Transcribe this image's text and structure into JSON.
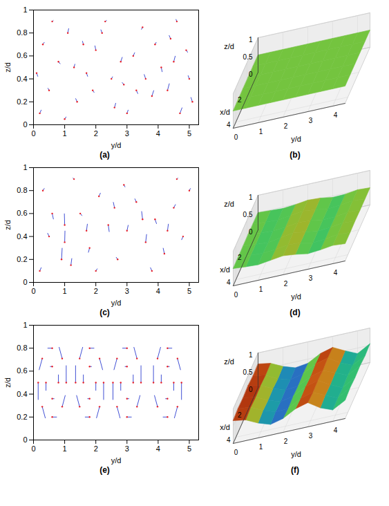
{
  "chart_data": [
    {
      "type": "vector_field",
      "panel_label": "(a)",
      "xlabel": "y/d",
      "ylabel": "z/d",
      "xlim": [
        0,
        5.3
      ],
      "xticks": [
        0,
        1,
        2,
        3,
        4,
        5
      ],
      "ylim": [
        0,
        1
      ],
      "yticks": [
        0,
        0.2,
        0.4,
        0.6,
        0.8,
        1
      ],
      "color": "#2b3ccf",
      "vectors": [
        [
          0.2,
          0.1,
          0.05,
          0.03
        ],
        [
          0.5,
          0.3,
          -0.04,
          0.02
        ],
        [
          0.8,
          0.55,
          0.06,
          -0.02
        ],
        [
          1.1,
          0.8,
          0.03,
          0.04
        ],
        [
          0.3,
          0.7,
          0.05,
          0.02
        ],
        [
          1.4,
          0.2,
          -0.05,
          0.03
        ],
        [
          1.7,
          0.45,
          0.04,
          -0.03
        ],
        [
          2.0,
          0.65,
          -0.03,
          0.04
        ],
        [
          2.3,
          0.9,
          0.05,
          0.01
        ],
        [
          2.6,
          0.15,
          0.04,
          0.04
        ],
        [
          2.9,
          0.35,
          -0.06,
          0.02
        ],
        [
          3.2,
          0.6,
          0.05,
          0.03
        ],
        [
          3.5,
          0.85,
          -0.04,
          -0.02
        ],
        [
          3.8,
          0.25,
          0.06,
          0.05
        ],
        [
          4.1,
          0.5,
          0.03,
          -0.04
        ],
        [
          4.4,
          0.75,
          -0.05,
          0.03
        ],
        [
          4.7,
          0.1,
          0.07,
          0.05
        ],
        [
          5.0,
          0.4,
          -0.04,
          0.03
        ],
        [
          4.9,
          0.65,
          0.05,
          -0.02
        ],
        [
          0.6,
          0.9,
          0.04,
          0.01
        ],
        [
          1.0,
          0.05,
          0.05,
          0.02
        ],
        [
          1.3,
          0.5,
          0.03,
          0.03
        ],
        [
          1.9,
          0.3,
          0.05,
          -0.02
        ],
        [
          2.2,
          0.8,
          -0.04,
          0.03
        ],
        [
          2.8,
          0.55,
          0.05,
          0.04
        ],
        [
          3.0,
          0.1,
          0.04,
          0.03
        ],
        [
          3.6,
          0.4,
          -0.05,
          0.04
        ],
        [
          3.9,
          0.7,
          0.04,
          0.02
        ],
        [
          4.3,
          0.3,
          0.06,
          0.06
        ],
        [
          4.6,
          0.9,
          -0.03,
          0.02
        ],
        [
          0.1,
          0.45,
          0.04,
          -0.03
        ],
        [
          1.6,
          0.7,
          -0.03,
          0.03
        ],
        [
          2.5,
          0.4,
          0.04,
          0.02
        ],
        [
          3.3,
          0.3,
          0.05,
          -0.03
        ],
        [
          4.5,
          0.55,
          0.05,
          0.05
        ],
        [
          5.1,
          0.2,
          -0.05,
          0.04
        ]
      ]
    },
    {
      "type": "surface",
      "panel_label": "(b)",
      "xlabel": "x/d",
      "ylabel": "y/d",
      "zlabel": "z/d",
      "xlim": [
        0,
        4.5
      ],
      "xticks": [
        2,
        4
      ],
      "ylim": [
        0,
        4.5
      ],
      "yticks": [
        0,
        1,
        2,
        3,
        4
      ],
      "zlim": [
        0,
        1
      ],
      "zticks": [
        0,
        0.5,
        1
      ],
      "surface": {
        "x": [
          0,
          0.9,
          1.8,
          2.7,
          3.6,
          4.5
        ],
        "y": [
          0,
          0.5,
          1,
          1.5,
          2,
          2.5,
          3,
          3.5,
          4,
          4.5
        ],
        "z": [
          [
            0.5,
            0.5,
            0.5,
            0.5,
            0.5,
            0.5,
            0.5,
            0.5,
            0.5,
            0.5
          ],
          [
            0.5,
            0.5,
            0.5,
            0.5,
            0.5,
            0.5,
            0.5,
            0.5,
            0.5,
            0.5
          ],
          [
            0.5,
            0.5,
            0.5,
            0.5,
            0.5,
            0.5,
            0.5,
            0.5,
            0.5,
            0.5
          ],
          [
            0.5,
            0.5,
            0.5,
            0.5,
            0.5,
            0.5,
            0.5,
            0.5,
            0.5,
            0.5
          ],
          [
            0.5,
            0.5,
            0.5,
            0.5,
            0.5,
            0.5,
            0.5,
            0.5,
            0.5,
            0.5
          ],
          [
            0.5,
            0.5,
            0.5,
            0.5,
            0.5,
            0.5,
            0.5,
            0.5,
            0.5,
            0.5
          ]
        ]
      }
    },
    {
      "type": "vector_field",
      "panel_label": "(c)",
      "xlabel": "y/d",
      "ylabel": "z/d",
      "xlim": [
        0,
        5.3
      ],
      "xticks": [
        0,
        1,
        2,
        3,
        4,
        5
      ],
      "ylim": [
        0,
        1
      ],
      "yticks": [
        0,
        0.2,
        0.4,
        0.6,
        0.8,
        1
      ],
      "color": "#2b3ccf",
      "vectors": [
        [
          0.9,
          0.2,
          0.02,
          0.1
        ],
        [
          1.0,
          0.35,
          0.01,
          0.1
        ],
        [
          1.0,
          0.5,
          -0.01,
          0.1
        ],
        [
          0.3,
          0.8,
          0.05,
          0.02
        ],
        [
          0.5,
          0.4,
          -0.05,
          0.03
        ],
        [
          1.5,
          0.6,
          0.06,
          -0.02
        ],
        [
          1.8,
          0.3,
          -0.04,
          -0.04
        ],
        [
          2.1,
          0.75,
          0.05,
          0.03
        ],
        [
          2.4,
          0.5,
          0.03,
          -0.06
        ],
        [
          2.7,
          0.2,
          -0.05,
          0.02
        ],
        [
          3.0,
          0.45,
          0.04,
          0.05
        ],
        [
          3.3,
          0.7,
          -0.05,
          0.03
        ],
        [
          3.6,
          0.35,
          0.03,
          0.07
        ],
        [
          3.9,
          0.55,
          0.05,
          -0.04
        ],
        [
          4.2,
          0.25,
          -0.04,
          0.05
        ],
        [
          4.5,
          0.65,
          0.06,
          0.03
        ],
        [
          4.8,
          0.4,
          -0.05,
          -0.03
        ],
        [
          5.0,
          0.8,
          0.04,
          0.02
        ],
        [
          0.2,
          0.1,
          0.05,
          0.03
        ],
        [
          1.3,
          0.9,
          -0.04,
          0.01
        ],
        [
          2.0,
          0.1,
          0.05,
          0.02
        ],
        [
          2.9,
          0.85,
          0.04,
          -0.02
        ],
        [
          3.8,
          0.1,
          -0.05,
          0.03
        ],
        [
          4.6,
          0.9,
          0.04,
          0.01
        ],
        [
          1.2,
          0.15,
          0.03,
          0.06
        ],
        [
          3.5,
          0.55,
          -0.03,
          0.07
        ],
        [
          4.3,
          0.45,
          0.03,
          0.06
        ],
        [
          0.6,
          0.6,
          0.04,
          -0.05
        ],
        [
          2.6,
          0.65,
          -0.04,
          0.05
        ],
        [
          1.7,
          0.45,
          0.03,
          0.06
        ]
      ]
    },
    {
      "type": "surface",
      "panel_label": "(d)",
      "xlabel": "x/d",
      "ylabel": "y/d",
      "zlabel": "z/d",
      "xlim": [
        0,
        4.5
      ],
      "xticks": [
        2,
        4
      ],
      "ylim": [
        0,
        4.5
      ],
      "yticks": [
        0,
        1,
        2,
        3,
        4
      ],
      "zlim": [
        0,
        1
      ],
      "zticks": [
        0,
        0.5,
        1
      ],
      "surface": {
        "x": [
          0,
          0.9,
          1.8,
          2.7,
          3.6,
          4.5
        ],
        "y": [
          0,
          0.5,
          1,
          1.5,
          2,
          2.5,
          3,
          3.5,
          4,
          4.5
        ],
        "z": [
          [
            0.5,
            0.48,
            0.46,
            0.49,
            0.54,
            0.52,
            0.46,
            0.47,
            0.52,
            0.5
          ],
          [
            0.5,
            0.47,
            0.45,
            0.5,
            0.55,
            0.51,
            0.45,
            0.48,
            0.53,
            0.5
          ],
          [
            0.51,
            0.48,
            0.46,
            0.49,
            0.54,
            0.52,
            0.46,
            0.47,
            0.52,
            0.5
          ],
          [
            0.5,
            0.47,
            0.44,
            0.5,
            0.56,
            0.51,
            0.45,
            0.48,
            0.53,
            0.51
          ],
          [
            0.5,
            0.48,
            0.46,
            0.49,
            0.54,
            0.52,
            0.44,
            0.47,
            0.52,
            0.5
          ],
          [
            0.5,
            0.47,
            0.45,
            0.5,
            0.55,
            0.51,
            0.45,
            0.48,
            0.53,
            0.5
          ]
        ]
      }
    },
    {
      "type": "vector_field",
      "panel_label": "(e)",
      "xlabel": "y/d",
      "ylabel": "z/d",
      "xlim": [
        0,
        5.3
      ],
      "xticks": [
        0,
        1,
        2,
        3,
        4,
        5
      ],
      "ylim": [
        0,
        1
      ],
      "yticks": [
        0,
        0.2,
        0.4,
        0.6,
        0.8,
        1
      ],
      "color": "#2b3ccf",
      "vectors": [
        [
          1.05,
          0.5,
          0,
          0.15
        ],
        [
          0.92,
          0.71,
          -0.1,
          0.1
        ],
        [
          0.6,
          0.8,
          -0.15,
          0
        ],
        [
          0.28,
          0.71,
          -0.1,
          -0.1
        ],
        [
          0.15,
          0.5,
          0,
          -0.15
        ],
        [
          0.28,
          0.29,
          0.1,
          -0.1
        ],
        [
          0.6,
          0.2,
          0.15,
          0
        ],
        [
          0.92,
          0.29,
          0.1,
          0.1
        ],
        [
          0.8,
          0.5,
          0,
          0.07
        ],
        [
          0.6,
          0.64,
          -0.07,
          0
        ],
        [
          0.4,
          0.5,
          0,
          -0.07
        ],
        [
          0.6,
          0.36,
          0.07,
          0
        ],
        [
          2.25,
          0.5,
          0,
          -0.15
        ],
        [
          2.12,
          0.71,
          0.1,
          -0.1
        ],
        [
          1.8,
          0.8,
          0.15,
          0
        ],
        [
          1.48,
          0.71,
          0.1,
          0.1
        ],
        [
          1.35,
          0.5,
          0,
          0.15
        ],
        [
          1.48,
          0.29,
          -0.1,
          0.1
        ],
        [
          1.8,
          0.2,
          -0.15,
          0
        ],
        [
          2.12,
          0.29,
          -0.1,
          -0.1
        ],
        [
          2.0,
          0.5,
          0,
          -0.07
        ],
        [
          1.8,
          0.64,
          0.07,
          0
        ],
        [
          1.6,
          0.5,
          0,
          0.07
        ],
        [
          1.8,
          0.36,
          -0.07,
          0
        ],
        [
          3.45,
          0.5,
          0,
          0.15
        ],
        [
          3.32,
          0.71,
          -0.1,
          0.1
        ],
        [
          3.0,
          0.8,
          -0.15,
          0
        ],
        [
          2.68,
          0.71,
          -0.1,
          -0.1
        ],
        [
          2.55,
          0.5,
          0,
          -0.15
        ],
        [
          2.68,
          0.29,
          0.1,
          -0.1
        ],
        [
          3.0,
          0.2,
          0.15,
          0
        ],
        [
          3.32,
          0.29,
          0.1,
          0.1
        ],
        [
          3.2,
          0.5,
          0,
          0.07
        ],
        [
          3.0,
          0.64,
          -0.07,
          0
        ],
        [
          2.8,
          0.5,
          0,
          -0.07
        ],
        [
          3.0,
          0.36,
          0.07,
          0
        ],
        [
          4.75,
          0.5,
          0,
          -0.15
        ],
        [
          4.62,
          0.71,
          0.1,
          -0.1
        ],
        [
          4.3,
          0.8,
          0.15,
          0
        ],
        [
          3.98,
          0.71,
          0.1,
          0.1
        ],
        [
          3.85,
          0.5,
          0,
          0.15
        ],
        [
          3.98,
          0.29,
          -0.1,
          0.1
        ],
        [
          4.3,
          0.2,
          -0.15,
          0
        ],
        [
          4.62,
          0.29,
          -0.1,
          -0.1
        ],
        [
          4.5,
          0.5,
          0,
          -0.07
        ],
        [
          4.3,
          0.64,
          0.07,
          0
        ],
        [
          4.1,
          0.5,
          0,
          0.07
        ],
        [
          4.3,
          0.36,
          -0.07,
          0
        ]
      ]
    },
    {
      "type": "surface",
      "panel_label": "(f)",
      "xlabel": "x/d",
      "ylabel": "y/d",
      "zlabel": "z/d",
      "xlim": [
        0,
        4.5
      ],
      "xticks": [
        2,
        4
      ],
      "ylim": [
        0,
        4.5
      ],
      "yticks": [
        0,
        1,
        2,
        3,
        4
      ],
      "zlim": [
        0,
        1
      ],
      "zticks": [
        0,
        0.5,
        1
      ],
      "surface": {
        "x": [
          0,
          0.9,
          1.8,
          2.7,
          3.6,
          4.5
        ],
        "y": [
          0,
          0.5,
          1,
          1.5,
          2,
          2.5,
          3,
          3.5,
          4,
          4.5
        ],
        "z": [
          [
            0.68,
            0.62,
            0.45,
            0.33,
            0.38,
            0.58,
            0.68,
            0.5,
            0.34,
            0.55
          ],
          [
            0.66,
            0.6,
            0.42,
            0.31,
            0.4,
            0.6,
            0.7,
            0.48,
            0.33,
            0.52
          ],
          [
            0.7,
            0.63,
            0.46,
            0.34,
            0.37,
            0.56,
            0.66,
            0.52,
            0.36,
            0.56
          ],
          [
            0.67,
            0.61,
            0.44,
            0.32,
            0.39,
            0.59,
            0.69,
            0.49,
            0.32,
            0.54
          ],
          [
            0.69,
            0.64,
            0.47,
            0.35,
            0.36,
            0.57,
            0.67,
            0.51,
            0.35,
            0.57
          ],
          [
            0.66,
            0.6,
            0.43,
            0.31,
            0.4,
            0.6,
            0.7,
            0.47,
            0.33,
            0.53
          ]
        ]
      }
    }
  ]
}
